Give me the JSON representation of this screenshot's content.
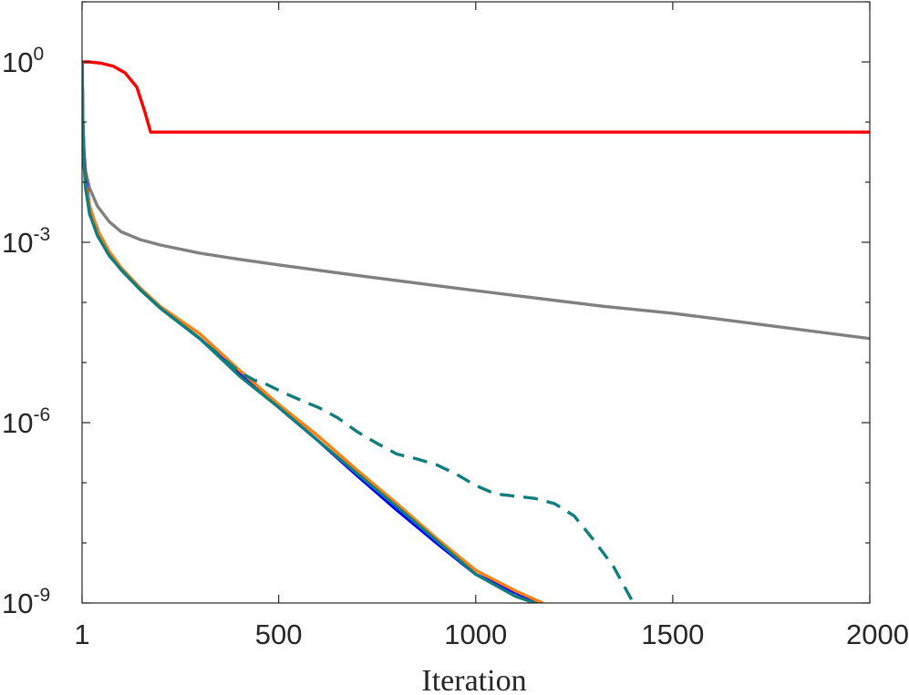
{
  "chart_data": {
    "type": "line",
    "title": "",
    "xlabel": "Iteration",
    "ylabel": "",
    "yscale": "log",
    "xlim": [
      1,
      2000
    ],
    "ylim": [
      1e-09,
      10
    ],
    "grid": false,
    "legend": "none",
    "x_ticks": [
      {
        "value": 1,
        "label": "1"
      },
      {
        "value": 500,
        "label": "500"
      },
      {
        "value": 1000,
        "label": "1000"
      },
      {
        "value": 1500,
        "label": "1500"
      },
      {
        "value": 2000,
        "label": "2000"
      }
    ],
    "y_ticks": [
      {
        "value": 1,
        "base": "10",
        "exp": "0"
      },
      {
        "value": 0.001,
        "base": "10",
        "exp": "-3"
      },
      {
        "value": 1e-06,
        "base": "10",
        "exp": "-6"
      },
      {
        "value": 1e-09,
        "base": "10",
        "exp": "-9"
      }
    ],
    "series": [
      {
        "color": "#ff0000",
        "style": "solid",
        "x": [
          1,
          20,
          50,
          80,
          110,
          140,
          160,
          175,
          176,
          500,
          1000,
          1500,
          2000
        ],
        "y": [
          1,
          1,
          0.95,
          0.85,
          0.66,
          0.38,
          0.15,
          0.068,
          0.068,
          0.068,
          0.068,
          0.068,
          0.068
        ]
      },
      {
        "color": "#808080",
        "style": "solid",
        "x": [
          1,
          3,
          6,
          10,
          20,
          40,
          70,
          100,
          150,
          200,
          300,
          400,
          500,
          700,
          900,
          1100,
          1300,
          1325,
          1500,
          1700,
          2000
        ],
        "y": [
          1,
          0.1,
          0.03,
          0.015,
          0.008,
          0.004,
          0.0022,
          0.0015,
          0.0011,
          0.0009,
          0.00066,
          0.00052,
          0.00042,
          0.00028,
          0.00019,
          0.00013,
          9e-05,
          8.6e-05,
          6.6e-05,
          4.5e-05,
          2.5e-05
        ]
      },
      {
        "color": "#0000ff",
        "style": "solid",
        "x": [
          1,
          3,
          6,
          10,
          20,
          30,
          50,
          70,
          100,
          150,
          200,
          300,
          400,
          500,
          600,
          700,
          800,
          900,
          1000,
          1100,
          1160
        ],
        "y": [
          1,
          0.1,
          0.03,
          0.012,
          0.004,
          0.0025,
          0.0011,
          0.00065,
          0.00035,
          0.00016,
          8e-05,
          2.5e-05,
          6.5e-06,
          1.8e-06,
          5e-07,
          1.3e-07,
          3.5e-08,
          1e-08,
          3e-09,
          1.5e-09,
          1e-09
        ]
      },
      {
        "color": "#ff7f0e",
        "style": "solid",
        "x": [
          1,
          3,
          6,
          10,
          20,
          40,
          70,
          100,
          150,
          200,
          300,
          400,
          500,
          600,
          700,
          800,
          900,
          1000,
          1100,
          1170
        ],
        "y": [
          1,
          0.1,
          0.025,
          0.01,
          0.004,
          0.0016,
          0.0007,
          0.00038,
          0.00017,
          8.5e-05,
          3e-05,
          7.5e-06,
          2e-06,
          6e-07,
          1.6e-07,
          4.5e-08,
          1.2e-08,
          3.5e-09,
          1.6e-09,
          1e-09
        ]
      },
      {
        "color": "#127d7d",
        "style": "solid",
        "x": [
          1,
          3,
          6,
          10,
          20,
          40,
          70,
          100,
          150,
          200,
          300,
          400,
          500,
          600,
          700,
          800,
          900,
          1000,
          1100,
          1150
        ],
        "y": [
          1,
          0.1,
          0.02,
          0.008,
          0.003,
          0.0013,
          0.0006,
          0.00035,
          0.00016,
          8e-05,
          2.5e-05,
          6e-06,
          1.8e-06,
          5e-07,
          1.4e-07,
          4e-08,
          1.1e-08,
          3e-09,
          1.3e-09,
          1e-09
        ]
      },
      {
        "color": "#127d7d",
        "style": "dashed",
        "x": [
          1,
          3,
          6,
          10,
          20,
          40,
          70,
          100,
          150,
          200,
          300,
          400,
          440,
          450,
          480,
          520,
          560,
          600,
          650,
          700,
          750,
          800,
          850,
          900,
          950,
          1000,
          1050,
          1100,
          1150,
          1200,
          1250,
          1300,
          1350,
          1400
        ],
        "y": [
          1,
          0.1,
          0.02,
          0.008,
          0.003,
          0.0013,
          0.0006,
          0.00035,
          0.00016,
          8e-05,
          2.5e-05,
          7e-06,
          5e-06,
          5e-06,
          4e-06,
          3e-06,
          2.3e-06,
          1.8e-06,
          1.2e-06,
          7e-07,
          4.5e-07,
          3e-07,
          2.5e-07,
          2e-07,
          1.4e-07,
          9e-08,
          6.5e-08,
          6e-08,
          5.5e-08,
          4.5e-08,
          2.8e-08,
          1.1e-08,
          4e-09,
          1e-09
        ]
      }
    ]
  }
}
